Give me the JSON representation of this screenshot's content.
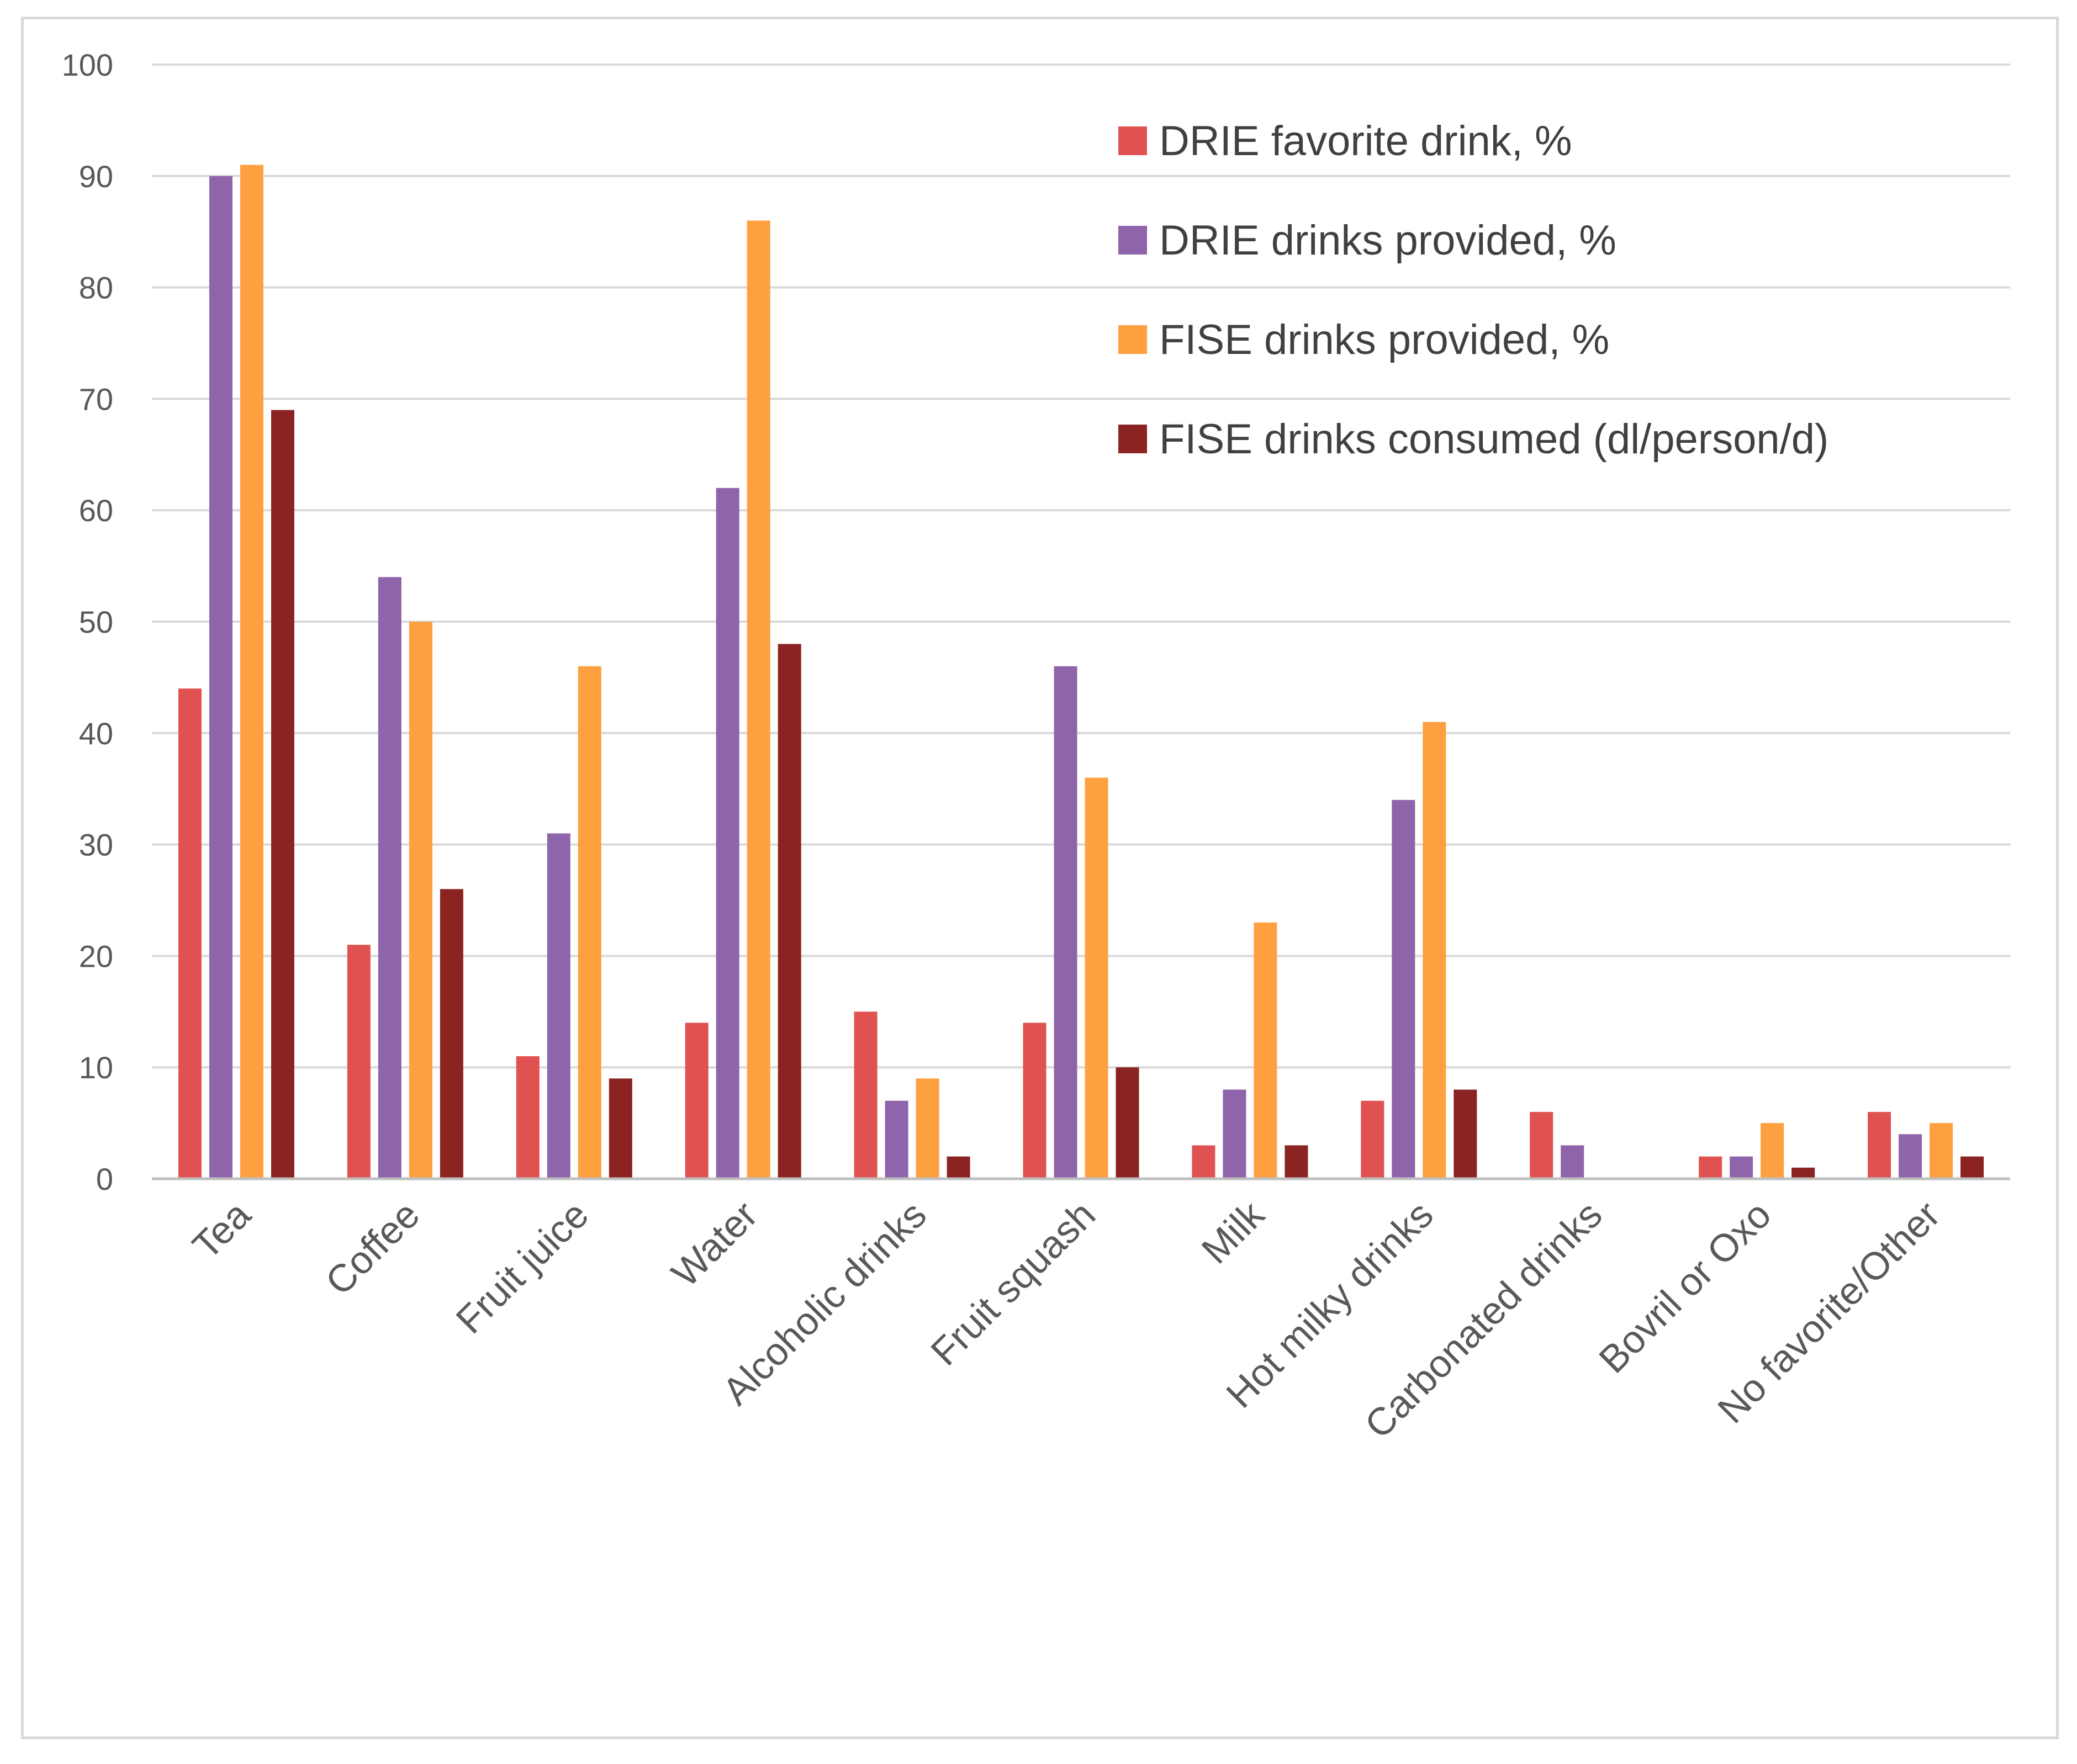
{
  "chart_data": {
    "type": "bar",
    "title": "",
    "xlabel": "",
    "ylabel": "",
    "ylim": [
      0,
      100
    ],
    "yticks": [
      0,
      10,
      20,
      30,
      40,
      50,
      60,
      70,
      80,
      90,
      100
    ],
    "grid": true,
    "legend_position": "top-right",
    "categories": [
      "Tea",
      "Coffee",
      "Fruit juice",
      "Water",
      "Alcoholic drinks",
      "Fruit squash",
      "Milk",
      "Hot milky drinks",
      "Carbonated drinks",
      "Bovril or Oxo",
      "No favorite/Other"
    ],
    "series": [
      {
        "name": "DRIE favorite drink, %",
        "color": "#e05252",
        "values": [
          44,
          21,
          11,
          14,
          15,
          14,
          3,
          7,
          6,
          2,
          6
        ]
      },
      {
        "name": "DRIE drinks provided, %",
        "color": "#8e64aa",
        "values": [
          90,
          54,
          31,
          62,
          7,
          46,
          8,
          34,
          3,
          2,
          4
        ]
      },
      {
        "name": "FISE drinks provided, %",
        "color": "#ffa040",
        "values": [
          91,
          50,
          46,
          86,
          9,
          36,
          23,
          41,
          0,
          5,
          5
        ]
      },
      {
        "name": "FISE drinks consumed (dl/person/d)",
        "color": "#8b2323",
        "values": [
          69,
          26,
          9,
          48,
          2,
          10,
          3,
          8,
          0,
          1,
          2
        ]
      }
    ]
  }
}
